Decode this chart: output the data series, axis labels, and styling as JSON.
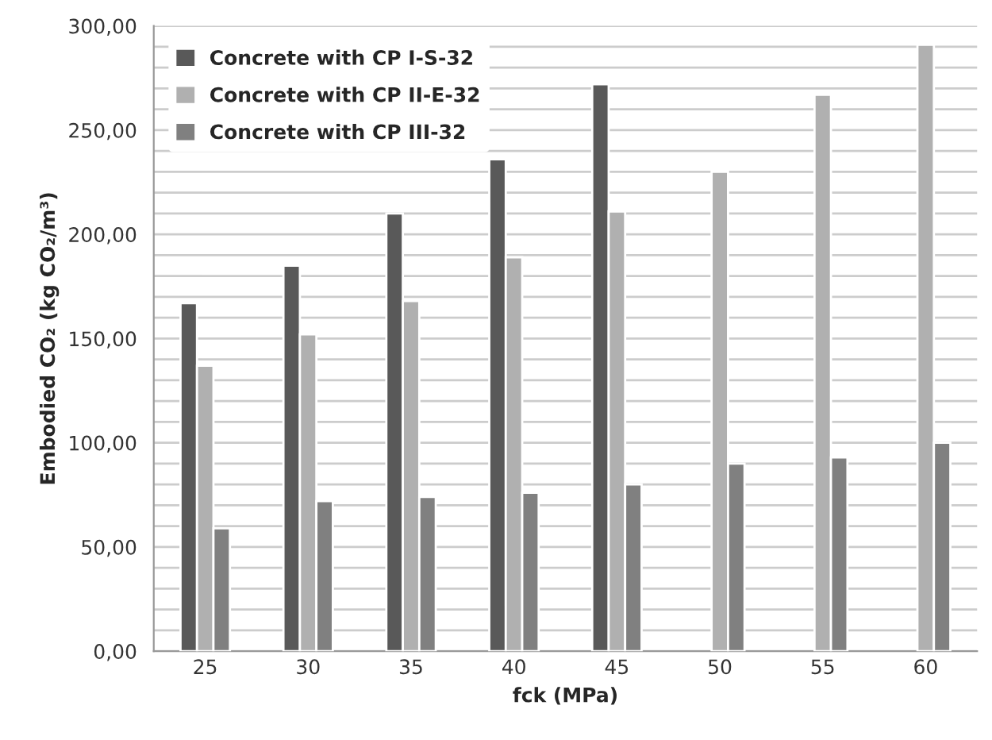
{
  "chart_data": {
    "type": "bar",
    "xlabel": "fck (MPa)",
    "ylabel": "Embodied CO₂ (kg CO₂/m³)",
    "categories": [
      "25",
      "30",
      "35",
      "40",
      "45",
      "50",
      "55",
      "60"
    ],
    "series": [
      {
        "name": "Concrete with CP I-S-32",
        "color": "#595959",
        "values": [
          167,
          185,
          210,
          236,
          272,
          null,
          null,
          null
        ]
      },
      {
        "name": "Concrete with CP II-E-32",
        "color": "#b0b0b0",
        "values": [
          137,
          152,
          168,
          189,
          211,
          230,
          267,
          291
        ]
      },
      {
        "name": "Concrete with CP III-32",
        "color": "#808080",
        "values": [
          59,
          72,
          74,
          76,
          80,
          90,
          93,
          100
        ]
      }
    ],
    "ylim": [
      0,
      300
    ],
    "yticks": [
      {
        "value": 0,
        "label": "0,00"
      },
      {
        "value": 10,
        "label": null
      },
      {
        "value": 20,
        "label": null
      },
      {
        "value": 30,
        "label": null
      },
      {
        "value": 40,
        "label": null
      },
      {
        "value": 50,
        "label": "50,00"
      },
      {
        "value": 60,
        "label": null
      },
      {
        "value": 70,
        "label": null
      },
      {
        "value": 80,
        "label": null
      },
      {
        "value": 90,
        "label": null
      },
      {
        "value": 100,
        "label": "100,00"
      },
      {
        "value": 110,
        "label": null
      },
      {
        "value": 120,
        "label": null
      },
      {
        "value": 130,
        "label": null
      },
      {
        "value": 140,
        "label": null
      },
      {
        "value": 150,
        "label": "150,00"
      },
      {
        "value": 160,
        "label": null
      },
      {
        "value": 170,
        "label": null
      },
      {
        "value": 180,
        "label": null
      },
      {
        "value": 190,
        "label": null
      },
      {
        "value": 200,
        "label": "200,00"
      },
      {
        "value": 210,
        "label": null
      },
      {
        "value": 220,
        "label": null
      },
      {
        "value": 230,
        "label": null
      },
      {
        "value": 240,
        "label": null
      },
      {
        "value": 250,
        "label": "250,00"
      },
      {
        "value": 260,
        "label": null
      },
      {
        "value": 270,
        "label": null
      },
      {
        "value": 280,
        "label": null
      },
      {
        "value": 290,
        "label": null
      },
      {
        "value": 300,
        "label": "300,00"
      }
    ],
    "grid": "y",
    "legend": "top left"
  }
}
